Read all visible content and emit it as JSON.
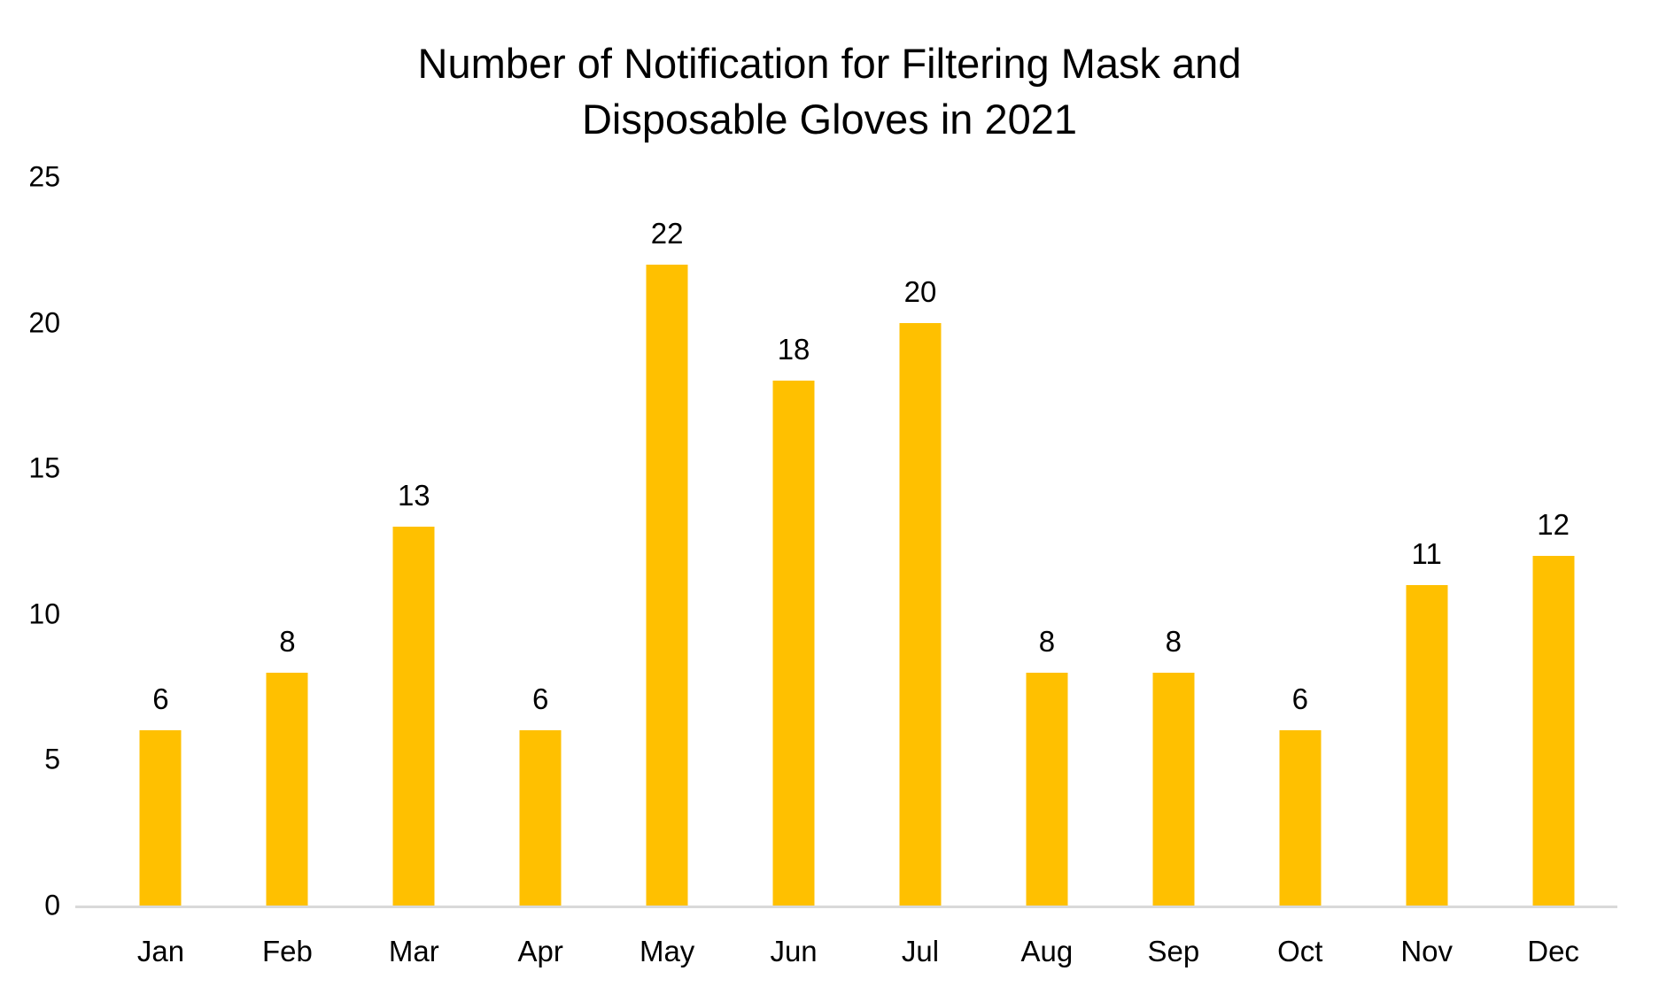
{
  "chart": {
    "title_line1": "Number of Notification for Filtering Mask and",
    "title_line2": "Disposable Gloves in 2021"
  },
  "chart_data": {
    "type": "bar",
    "title": "Number of Notification for Filtering Mask and Disposable Gloves in 2021",
    "categories": [
      "Jan",
      "Feb",
      "Mar",
      "Apr",
      "May",
      "Jun",
      "Jul",
      "Aug",
      "Sep",
      "Oct",
      "Nov",
      "Dec"
    ],
    "values": [
      6,
      8,
      13,
      6,
      22,
      18,
      20,
      8,
      8,
      6,
      11,
      12
    ],
    "xlabel": "",
    "ylabel": "",
    "ylim": [
      0,
      25
    ],
    "yticks": [
      0,
      5,
      10,
      15,
      20,
      25
    ],
    "grid": false,
    "legend": false,
    "data_labels": true,
    "colors": {
      "bar": "#FFC000",
      "axis_line": "#D9D9D9",
      "text": "#000000",
      "background": "#FFFFFF"
    }
  }
}
